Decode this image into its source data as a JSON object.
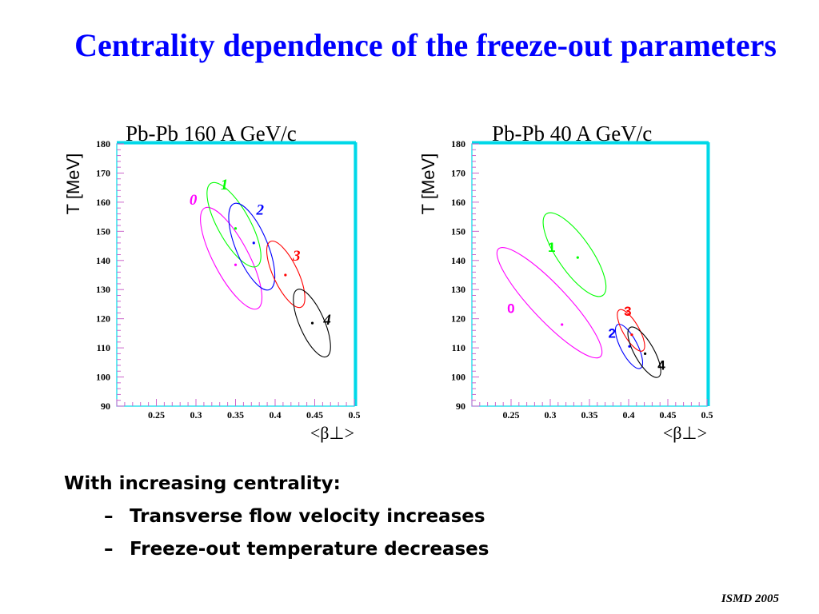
{
  "slide": {
    "title": "Centrality dependence of the freeze-out parameters",
    "bullets": {
      "heading": "With increasing centrality:",
      "items": [
        "Transverse flow velocity increases",
        "Freeze-out temperature decreases"
      ],
      "marker": "–"
    },
    "footer": "ISMD 2005"
  },
  "chart_data": [
    {
      "type": "scatter",
      "title": "Pb-Pb 160 A GeV/c",
      "ylabel": "T [MeV]",
      "xlabel": "<β⊥>",
      "xlim": [
        0.2,
        0.5
      ],
      "ylim": [
        90,
        180
      ],
      "xticks": [
        0.25,
        0.3,
        0.35,
        0.4,
        0.45,
        0.5
      ],
      "yticks": [
        90,
        100,
        110,
        120,
        130,
        140,
        150,
        160,
        170,
        180
      ],
      "label_style": "bold-italic-serif",
      "series": [
        {
          "name": "0",
          "color": "#ff00ff",
          "x": 0.35,
          "y": 138.5,
          "ellipse": [
            [
              0.311,
              158
            ],
            [
              0.378,
              123.5
            ]
          ]
        },
        {
          "name": "1",
          "color": "#00ff00",
          "x": 0.35,
          "y": 151,
          "ellipse": [
            [
              0.319,
              166.5
            ],
            [
              0.377,
              138
            ]
          ]
        },
        {
          "name": "2",
          "color": "#0000ff",
          "x": 0.373,
          "y": 146,
          "ellipse": [
            [
              0.348,
              159.5
            ],
            [
              0.393,
              130
            ]
          ]
        },
        {
          "name": "3",
          "color": "#ff0000",
          "x": 0.413,
          "y": 135,
          "ellipse": [
            [
              0.394,
              146.5
            ],
            [
              0.433,
              124
            ]
          ]
        },
        {
          "name": "4",
          "color": "#000000",
          "x": 0.447,
          "y": 118.5,
          "ellipse": [
            [
              0.428,
              130
            ],
            [
              0.465,
              107
            ]
          ]
        }
      ]
    },
    {
      "type": "scatter",
      "title": "Pb-Pb 40 A GeV/c",
      "ylabel": "T [MeV]",
      "xlabel": "<β⊥>",
      "xlim": [
        0.2,
        0.5
      ],
      "ylim": [
        90,
        180
      ],
      "xticks": [
        0.25,
        0.3,
        0.35,
        0.4,
        0.45,
        0.5
      ],
      "yticks": [
        90,
        100,
        110,
        120,
        130,
        140,
        150,
        160,
        170,
        180
      ],
      "label_style": "bold-sans",
      "series": [
        {
          "name": "0",
          "color": "#ff00ff",
          "x": 0.315,
          "y": 118,
          "ellipse": [
            [
              0.234,
              144
            ],
            [
              0.364,
              107
            ]
          ]
        },
        {
          "name": "1",
          "color": "#00ff00",
          "x": 0.335,
          "y": 141,
          "ellipse": [
            [
              0.295,
              156
            ],
            [
              0.367,
              128
            ]
          ]
        },
        {
          "name": "2",
          "color": "#0000ff",
          "x": 0.401,
          "y": 110.5,
          "ellipse": [
            [
              0.386,
              118
            ],
            [
              0.415,
              103
            ]
          ]
        },
        {
          "name": "3",
          "color": "#ff0000",
          "x": 0.404,
          "y": 114.5,
          "ellipse": [
            [
              0.388,
              123
            ],
            [
              0.418,
              109
            ]
          ]
        },
        {
          "name": "4",
          "color": "#000000",
          "x": 0.421,
          "y": 108,
          "ellipse": [
            [
              0.402,
              117
            ],
            [
              0.438,
              100
            ]
          ]
        }
      ]
    }
  ]
}
